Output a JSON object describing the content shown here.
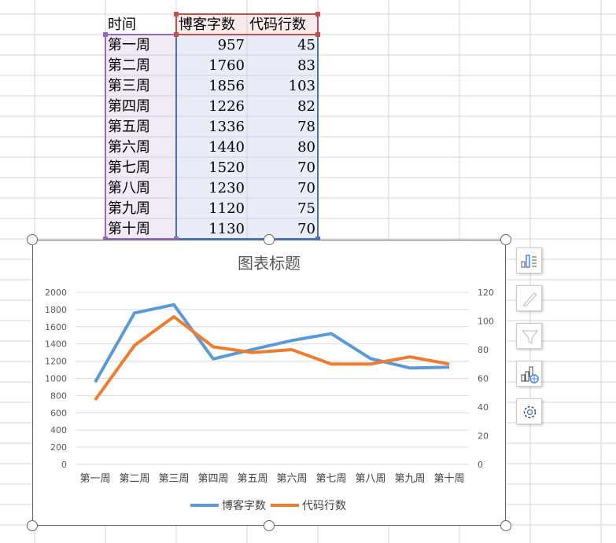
{
  "table": {
    "headers": [
      "时间",
      "博客字数",
      "代码行数"
    ],
    "rows": [
      [
        "第一周",
        "957",
        "45"
      ],
      [
        "第二周",
        "1760",
        "83"
      ],
      [
        "第三周",
        "1856",
        "103"
      ],
      [
        "第四周",
        "1226",
        "82"
      ],
      [
        "第五周",
        "1336",
        "78"
      ],
      [
        "第六周",
        "1440",
        "80"
      ],
      [
        "第七周",
        "1520",
        "70"
      ],
      [
        "第八周",
        "1230",
        "70"
      ],
      [
        "第九周",
        "1120",
        "75"
      ],
      [
        "第十周",
        "1130",
        "70"
      ]
    ]
  },
  "side_buttons": [
    "chart-elements-icon",
    "chart-style-icon",
    "chart-filter-icon",
    "chart-type-icon",
    "settings-icon"
  ],
  "chart_data": {
    "type": "line",
    "title": "图表标题",
    "categories": [
      "第一周",
      "第二周",
      "第三周",
      "第四周",
      "第五周",
      "第六周",
      "第七周",
      "第八周",
      "第九周",
      "第十周"
    ],
    "series": [
      {
        "name": "博客字数",
        "axis": "left",
        "color": "#5b9bd5",
        "values": [
          957,
          1760,
          1856,
          1226,
          1336,
          1440,
          1520,
          1230,
          1120,
          1130
        ]
      },
      {
        "name": "代码行数",
        "axis": "right",
        "color": "#ed7d31",
        "values": [
          45,
          83,
          103,
          82,
          78,
          80,
          70,
          70,
          75,
          70
        ]
      }
    ],
    "ylim": [
      0,
      2000
    ],
    "yticks": [
      "0",
      "200",
      "400",
      "600",
      "800",
      "1000",
      "1200",
      "1400",
      "1600",
      "1800",
      "2000"
    ],
    "y2lim": [
      0,
      120
    ],
    "y2ticks": [
      "0",
      "20",
      "40",
      "60",
      "80",
      "100",
      "120"
    ],
    "grid": true,
    "legend": "bottom"
  }
}
